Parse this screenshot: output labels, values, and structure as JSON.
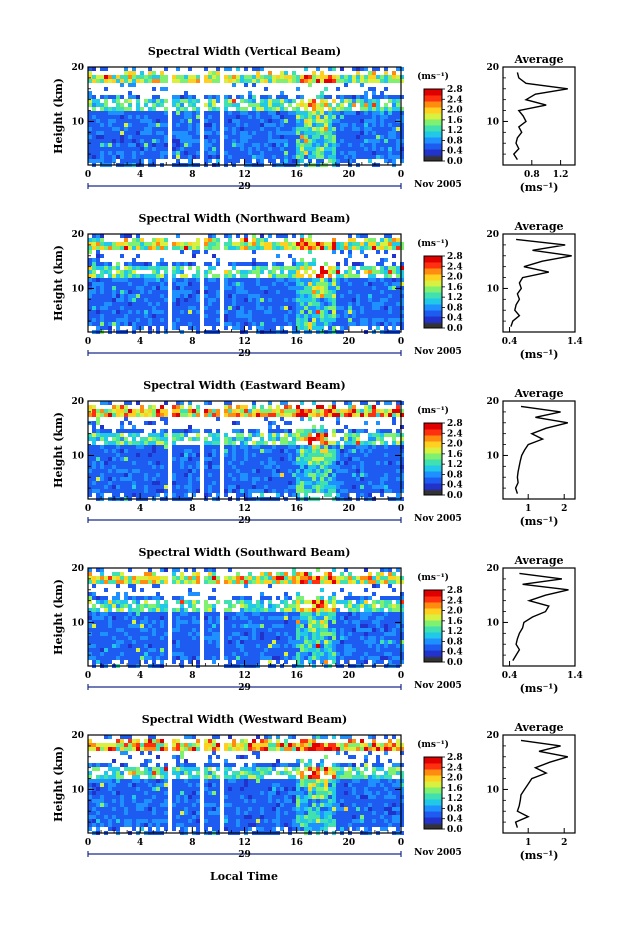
{
  "figure": {
    "xlabel": "Local Time",
    "date_label": "Nov 2005",
    "day_label": "29",
    "colorbar_unit": "(ms⁻¹)",
    "avg_title": "Average",
    "avg_unit": "(ms⁻¹)"
  },
  "colors": {
    "colormap": [
      "#30306a",
      "#2233cc",
      "#1e5bf0",
      "#1e90ff",
      "#22c8e8",
      "#40e0b0",
      "#80f070",
      "#d8f040",
      "#ffd020",
      "#ff8c10",
      "#ff3010",
      "#e00000"
    ],
    "low": "#333333"
  },
  "chart_data": [
    {
      "type": "heatmap",
      "title": "Spectral Width (Vertical Beam)",
      "ylabel": "Height (km)",
      "xlim": [
        0,
        24
      ],
      "ylim": [
        2,
        20
      ],
      "xticks": [
        "0",
        "4",
        "8",
        "12",
        "16",
        "20",
        "0"
      ],
      "yticks": [
        "10",
        "20"
      ],
      "colorbar": {
        "min": 0.0,
        "max": 2.8,
        "ticks": [
          "2.8",
          "2.4",
          "2.0",
          "1.6",
          "1.2",
          "0.8",
          "0.4",
          "0.0"
        ]
      },
      "gaps_local_time": [
        [
          6.0,
          6.5
        ],
        [
          8.5,
          9.0
        ],
        [
          10.0,
          10.4
        ]
      ],
      "average": {
        "xlim": [
          0.4,
          1.4
        ],
        "xticks": [
          "0.8",
          "1.2"
        ],
        "height_km": [
          3,
          4,
          5,
          6,
          7,
          8,
          9,
          10,
          11,
          12,
          13,
          14,
          15,
          16,
          17,
          18,
          19
        ],
        "width": [
          0.6,
          0.55,
          0.62,
          0.58,
          0.6,
          0.66,
          0.62,
          0.72,
          0.68,
          0.62,
          1.0,
          0.72,
          0.85,
          1.3,
          0.72,
          0.62,
          0.6
        ]
      }
    },
    {
      "type": "heatmap",
      "title": "Spectral Width (Northward Beam)",
      "ylabel": "Height (km)",
      "xlim": [
        0,
        24
      ],
      "ylim": [
        2,
        20
      ],
      "xticks": [
        "0",
        "4",
        "8",
        "12",
        "16",
        "20",
        "0"
      ],
      "yticks": [
        "10",
        "20"
      ],
      "colorbar": {
        "min": 0.0,
        "max": 2.8,
        "ticks": [
          "2.8",
          "2.4",
          "2.0",
          "1.6",
          "1.2",
          "0.8",
          "0.4",
          "0.0"
        ]
      },
      "gaps_local_time": [
        [
          6.0,
          6.4
        ],
        [
          8.5,
          8.9
        ],
        [
          10.0,
          10.4
        ]
      ],
      "average": {
        "xlim": [
          0.3,
          1.4
        ],
        "xticks": [
          "0.4",
          "1.4"
        ],
        "height_km": [
          3,
          4,
          5,
          6,
          7,
          8,
          9,
          10,
          11,
          12,
          13,
          14,
          15,
          16,
          17,
          18,
          19
        ],
        "width": [
          0.42,
          0.45,
          0.55,
          0.48,
          0.5,
          0.55,
          0.52,
          0.58,
          0.55,
          0.6,
          1.0,
          0.62,
          0.9,
          1.35,
          0.75,
          1.25,
          0.5
        ]
      }
    },
    {
      "type": "heatmap",
      "title": "Spectral Width (Eastward Beam)",
      "ylabel": "Height (km)",
      "xlim": [
        0,
        24
      ],
      "ylim": [
        2,
        20
      ],
      "xticks": [
        "0",
        "4",
        "8",
        "12",
        "16",
        "20",
        "0"
      ],
      "yticks": [
        "10",
        "20"
      ],
      "colorbar": {
        "min": 0.0,
        "max": 2.8,
        "ticks": [
          "2.8",
          "2.4",
          "2.0",
          "1.6",
          "1.2",
          "0.8",
          "0.4",
          "0.0"
        ]
      },
      "gaps_local_time": [
        [
          6.0,
          6.4
        ],
        [
          8.5,
          8.9
        ],
        [
          10.0,
          10.4
        ]
      ],
      "average": {
        "xlim": [
          0.3,
          2.3
        ],
        "xticks": [
          "1",
          "2"
        ],
        "height_km": [
          3,
          4,
          5,
          6,
          7,
          8,
          9,
          10,
          11,
          12,
          13,
          14,
          15,
          16,
          17,
          18,
          19
        ],
        "width": [
          0.7,
          0.65,
          0.72,
          0.7,
          0.72,
          0.75,
          0.78,
          0.82,
          0.9,
          1.0,
          1.4,
          1.1,
          1.5,
          2.1,
          1.2,
          1.9,
          0.8
        ]
      }
    },
    {
      "type": "heatmap",
      "title": "Spectral Width (Southward Beam)",
      "ylabel": "Height (km)",
      "xlim": [
        0,
        24
      ],
      "ylim": [
        2,
        20
      ],
      "xticks": [
        "0",
        "4",
        "8",
        "12",
        "16",
        "20",
        "0"
      ],
      "yticks": [
        "10",
        "20"
      ],
      "colorbar": {
        "min": 0.0,
        "max": 2.8,
        "ticks": [
          "2.8",
          "2.4",
          "2.0",
          "1.6",
          "1.2",
          "0.8",
          "0.4",
          "0.0"
        ]
      },
      "gaps_local_time": [
        [
          6.0,
          6.4
        ],
        [
          8.5,
          8.9
        ],
        [
          10.0,
          10.4
        ]
      ],
      "average": {
        "xlim": [
          0.3,
          1.4
        ],
        "xticks": [
          "0.4",
          "1.4"
        ],
        "height_km": [
          3,
          4,
          5,
          6,
          7,
          8,
          9,
          10,
          11,
          12,
          13,
          14,
          15,
          16,
          17,
          18,
          19
        ],
        "width": [
          0.45,
          0.5,
          0.55,
          0.5,
          0.52,
          0.55,
          0.6,
          0.62,
          0.75,
          0.95,
          1.0,
          0.7,
          0.95,
          1.3,
          0.6,
          1.2,
          0.55
        ]
      }
    },
    {
      "type": "heatmap",
      "title": "Spectral Width (Westward Beam)",
      "ylabel": "Height (km)",
      "xlim": [
        0,
        24
      ],
      "ylim": [
        2,
        20
      ],
      "xticks": [
        "0",
        "4",
        "8",
        "12",
        "16",
        "20",
        "0"
      ],
      "yticks": [
        "10",
        "20"
      ],
      "colorbar": {
        "min": 0.0,
        "max": 2.8,
        "ticks": [
          "2.8",
          "2.4",
          "2.0",
          "1.6",
          "1.2",
          "0.8",
          "0.4",
          "0.0"
        ]
      },
      "gaps_local_time": [
        [
          6.0,
          6.4
        ],
        [
          8.5,
          8.9
        ],
        [
          10.0,
          10.4
        ]
      ],
      "average": {
        "xlim": [
          0.3,
          2.3
        ],
        "xticks": [
          "1",
          "2"
        ],
        "height_km": [
          3,
          4,
          5,
          6,
          7,
          8,
          9,
          10,
          11,
          12,
          13,
          14,
          15,
          16,
          17,
          18,
          19
        ],
        "width": [
          0.7,
          0.65,
          1.0,
          0.7,
          0.75,
          0.78,
          0.8,
          0.9,
          1.0,
          1.1,
          1.5,
          1.2,
          1.6,
          2.1,
          1.3,
          1.9,
          0.8
        ]
      }
    }
  ]
}
